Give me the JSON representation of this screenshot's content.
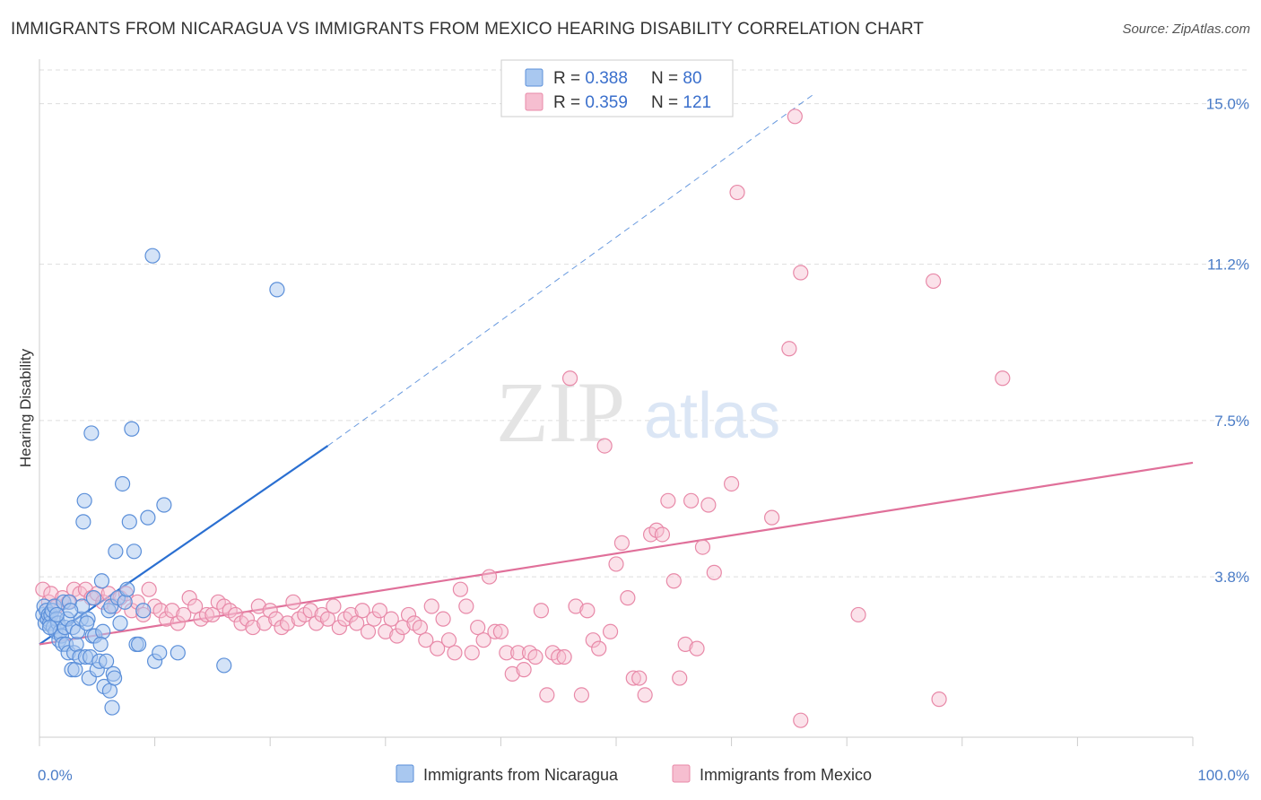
{
  "title": "IMMIGRANTS FROM NICARAGUA VS IMMIGRANTS FROM MEXICO HEARING DISABILITY CORRELATION CHART",
  "source": "Source: ZipAtlas.com",
  "watermark": {
    "zip": "ZIP",
    "atlas": "atlas"
  },
  "colors": {
    "nicaragua_fill": "#a9c8f0",
    "nicaragua_stroke": "#5b8fd9",
    "nicaragua_line": "#2a6fd1",
    "mexico_fill": "#f6bed0",
    "mexico_stroke": "#e889a8",
    "mexico_line": "#e0709a",
    "grid": "#dddddd",
    "tick_text": "#4a7cc7"
  },
  "legend": {
    "items": [
      {
        "r_label": "R = ",
        "r_value": "0.388",
        "n_label": "N = ",
        "n_value": "80"
      },
      {
        "r_label": "R = ",
        "r_value": "0.359",
        "n_label": "N = ",
        "n_value": "121"
      }
    ]
  },
  "chart_data": {
    "type": "scatter",
    "title": "IMMIGRANTS FROM NICARAGUA VS IMMIGRANTS FROM MEXICO HEARING DISABILITY CORRELATION CHART",
    "xlabel": "",
    "ylabel": "Hearing Disability",
    "xlim": [
      0,
      100
    ],
    "ylim": [
      0,
      15.8
    ],
    "x_tick_labels": [
      "0.0%",
      "100.0%"
    ],
    "y_ticks": [
      3.8,
      7.5,
      11.2,
      15.0
    ],
    "y_tick_labels": [
      "3.8%",
      "7.5%",
      "11.2%",
      "15.0%"
    ],
    "grid": true,
    "legend_position": "top-center",
    "series": [
      {
        "name": "Immigrants from Nicaragua",
        "R": 0.388,
        "N": 80,
        "trend": {
          "x0": 0,
          "y0": 2.2,
          "x1": 25,
          "y1": 6.9,
          "dashed_to_x": 67,
          "dashed_to_y": 15.2
        },
        "points": [
          [
            0.3,
            2.9
          ],
          [
            0.4,
            3.1
          ],
          [
            0.5,
            2.7
          ],
          [
            0.6,
            3.0
          ],
          [
            0.7,
            2.8
          ],
          [
            0.8,
            2.9
          ],
          [
            0.9,
            2.7
          ],
          [
            1.0,
            2.9
          ],
          [
            1.1,
            3.0
          ],
          [
            1.2,
            2.6
          ],
          [
            1.3,
            3.1
          ],
          [
            1.4,
            2.5
          ],
          [
            1.5,
            2.8
          ],
          [
            1.6,
            2.7
          ],
          [
            1.7,
            2.3
          ],
          [
            1.8,
            2.5
          ],
          [
            1.9,
            2.4
          ],
          [
            2.0,
            2.2
          ],
          [
            2.1,
            3.2
          ],
          [
            2.2,
            2.6
          ],
          [
            2.3,
            2.2
          ],
          [
            2.4,
            2.8
          ],
          [
            2.5,
            2.0
          ],
          [
            2.6,
            3.2
          ],
          [
            2.8,
            1.6
          ],
          [
            2.9,
            2.6
          ],
          [
            3.0,
            2.0
          ],
          [
            3.1,
            1.6
          ],
          [
            3.2,
            2.2
          ],
          [
            3.3,
            2.5
          ],
          [
            3.5,
            1.9
          ],
          [
            3.6,
            2.8
          ],
          [
            3.7,
            3.1
          ],
          [
            3.8,
            5.1
          ],
          [
            3.9,
            5.6
          ],
          [
            4.0,
            1.9
          ],
          [
            4.2,
            2.8
          ],
          [
            4.3,
            1.4
          ],
          [
            4.4,
            1.9
          ],
          [
            4.5,
            7.2
          ],
          [
            4.6,
            2.4
          ],
          [
            4.7,
            3.3
          ],
          [
            4.8,
            2.4
          ],
          [
            5.0,
            1.6
          ],
          [
            5.2,
            1.8
          ],
          [
            5.4,
            3.7
          ],
          [
            5.5,
            2.5
          ],
          [
            5.6,
            1.2
          ],
          [
            5.8,
            1.8
          ],
          [
            6.0,
            3.0
          ],
          [
            6.1,
            1.1
          ],
          [
            6.2,
            3.1
          ],
          [
            6.3,
            0.7
          ],
          [
            6.4,
            1.5
          ],
          [
            6.5,
            1.4
          ],
          [
            6.6,
            4.4
          ],
          [
            6.8,
            3.3
          ],
          [
            7.0,
            2.7
          ],
          [
            7.2,
            6.0
          ],
          [
            7.4,
            3.2
          ],
          [
            7.6,
            3.5
          ],
          [
            7.8,
            5.1
          ],
          [
            8.0,
            7.3
          ],
          [
            8.2,
            4.4
          ],
          [
            8.4,
            2.2
          ],
          [
            8.6,
            2.2
          ],
          [
            9.0,
            3.0
          ],
          [
            9.4,
            5.2
          ],
          [
            9.8,
            11.4
          ],
          [
            10.0,
            1.8
          ],
          [
            10.4,
            2.0
          ],
          [
            10.8,
            5.5
          ],
          [
            12.0,
            2.0
          ],
          [
            16.0,
            1.7
          ],
          [
            20.6,
            10.6
          ],
          [
            1.5,
            2.9
          ],
          [
            0.9,
            2.6
          ],
          [
            2.7,
            3.0
          ],
          [
            4.1,
            2.7
          ],
          [
            5.3,
            2.2
          ]
        ]
      },
      {
        "name": "Immigrants from Mexico",
        "R": 0.359,
        "N": 121,
        "trend": {
          "x0": 0,
          "y0": 2.2,
          "x1": 100,
          "y1": 6.5
        },
        "points": [
          [
            0.3,
            3.5
          ],
          [
            0.8,
            3.2
          ],
          [
            1.0,
            3.4
          ],
          [
            1.5,
            3.1
          ],
          [
            2.0,
            3.3
          ],
          [
            2.5,
            3.2
          ],
          [
            3.0,
            3.5
          ],
          [
            3.5,
            3.4
          ],
          [
            4.0,
            3.5
          ],
          [
            4.5,
            3.3
          ],
          [
            5.0,
            3.4
          ],
          [
            5.5,
            3.2
          ],
          [
            6.0,
            3.4
          ],
          [
            6.5,
            3.1
          ],
          [
            7.0,
            3.3
          ],
          [
            7.5,
            3.4
          ],
          [
            8.0,
            3.0
          ],
          [
            8.5,
            3.2
          ],
          [
            9.0,
            2.9
          ],
          [
            9.5,
            3.5
          ],
          [
            10.0,
            3.1
          ],
          [
            10.5,
            3.0
          ],
          [
            11.0,
            2.8
          ],
          [
            11.5,
            3.0
          ],
          [
            12.0,
            2.7
          ],
          [
            12.5,
            2.9
          ],
          [
            13.0,
            3.3
          ],
          [
            13.5,
            3.1
          ],
          [
            14.0,
            2.8
          ],
          [
            14.5,
            2.9
          ],
          [
            15.0,
            2.9
          ],
          [
            15.5,
            3.2
          ],
          [
            16.0,
            3.1
          ],
          [
            16.5,
            3.0
          ],
          [
            17.0,
            2.9
          ],
          [
            17.5,
            2.7
          ],
          [
            18.0,
            2.8
          ],
          [
            18.5,
            2.6
          ],
          [
            19.0,
            3.1
          ],
          [
            19.5,
            2.7
          ],
          [
            20.0,
            3.0
          ],
          [
            20.5,
            2.8
          ],
          [
            21.0,
            2.6
          ],
          [
            21.5,
            2.7
          ],
          [
            22.0,
            3.2
          ],
          [
            22.5,
            2.8
          ],
          [
            23.0,
            2.9
          ],
          [
            23.5,
            3.0
          ],
          [
            24.0,
            2.7
          ],
          [
            24.5,
            2.9
          ],
          [
            25.0,
            2.8
          ],
          [
            25.5,
            3.1
          ],
          [
            26.0,
            2.6
          ],
          [
            26.5,
            2.8
          ],
          [
            27.0,
            2.9
          ],
          [
            27.5,
            2.7
          ],
          [
            28.0,
            3.0
          ],
          [
            28.5,
            2.5
          ],
          [
            29.0,
            2.8
          ],
          [
            29.5,
            3.0
          ],
          [
            30.0,
            2.5
          ],
          [
            30.5,
            2.8
          ],
          [
            31.0,
            2.4
          ],
          [
            31.5,
            2.6
          ],
          [
            32.0,
            2.9
          ],
          [
            32.5,
            2.7
          ],
          [
            33.0,
            2.6
          ],
          [
            33.5,
            2.3
          ],
          [
            34.0,
            3.1
          ],
          [
            34.5,
            2.1
          ],
          [
            35.0,
            2.8
          ],
          [
            35.5,
            2.3
          ],
          [
            36.0,
            2.0
          ],
          [
            36.5,
            3.5
          ],
          [
            37.0,
            3.1
          ],
          [
            37.5,
            2.0
          ],
          [
            38.0,
            2.6
          ],
          [
            38.5,
            2.3
          ],
          [
            39.0,
            3.8
          ],
          [
            39.5,
            2.5
          ],
          [
            40.0,
            2.5
          ],
          [
            40.5,
            2.0
          ],
          [
            41.0,
            1.5
          ],
          [
            41.5,
            2.0
          ],
          [
            42.0,
            1.6
          ],
          [
            42.5,
            2.0
          ],
          [
            43.0,
            1.9
          ],
          [
            43.5,
            3.0
          ],
          [
            44.0,
            1.0
          ],
          [
            44.5,
            2.0
          ],
          [
            45.0,
            1.9
          ],
          [
            45.5,
            1.9
          ],
          [
            46.0,
            8.5
          ],
          [
            46.5,
            3.1
          ],
          [
            47.0,
            1.0
          ],
          [
            47.5,
            3.0
          ],
          [
            48.0,
            2.3
          ],
          [
            48.5,
            2.1
          ],
          [
            49.0,
            6.9
          ],
          [
            49.5,
            2.5
          ],
          [
            50.0,
            4.1
          ],
          [
            50.5,
            4.6
          ],
          [
            51.0,
            3.3
          ],
          [
            51.5,
            1.4
          ],
          [
            52.0,
            1.4
          ],
          [
            52.5,
            1.0
          ],
          [
            53.0,
            4.8
          ],
          [
            53.5,
            4.9
          ],
          [
            54.0,
            4.8
          ],
          [
            54.5,
            5.6
          ],
          [
            55.0,
            3.7
          ],
          [
            55.5,
            1.4
          ],
          [
            56.0,
            2.2
          ],
          [
            56.5,
            5.6
          ],
          [
            57.0,
            2.1
          ],
          [
            57.5,
            4.5
          ],
          [
            58.0,
            5.5
          ],
          [
            58.5,
            3.9
          ],
          [
            60.0,
            6.0
          ],
          [
            60.5,
            12.9
          ],
          [
            63.5,
            5.2
          ],
          [
            65.0,
            9.2
          ],
          [
            66.0,
            11.0
          ],
          [
            66.0,
            0.4
          ],
          [
            65.5,
            14.7
          ],
          [
            71.0,
            2.9
          ],
          [
            78.0,
            0.9
          ],
          [
            77.5,
            10.8
          ],
          [
            83.5,
            8.5
          ]
        ]
      }
    ]
  },
  "bottom_legend": [
    {
      "label": "Immigrants from Nicaragua"
    },
    {
      "label": "Immigrants from Mexico"
    }
  ]
}
